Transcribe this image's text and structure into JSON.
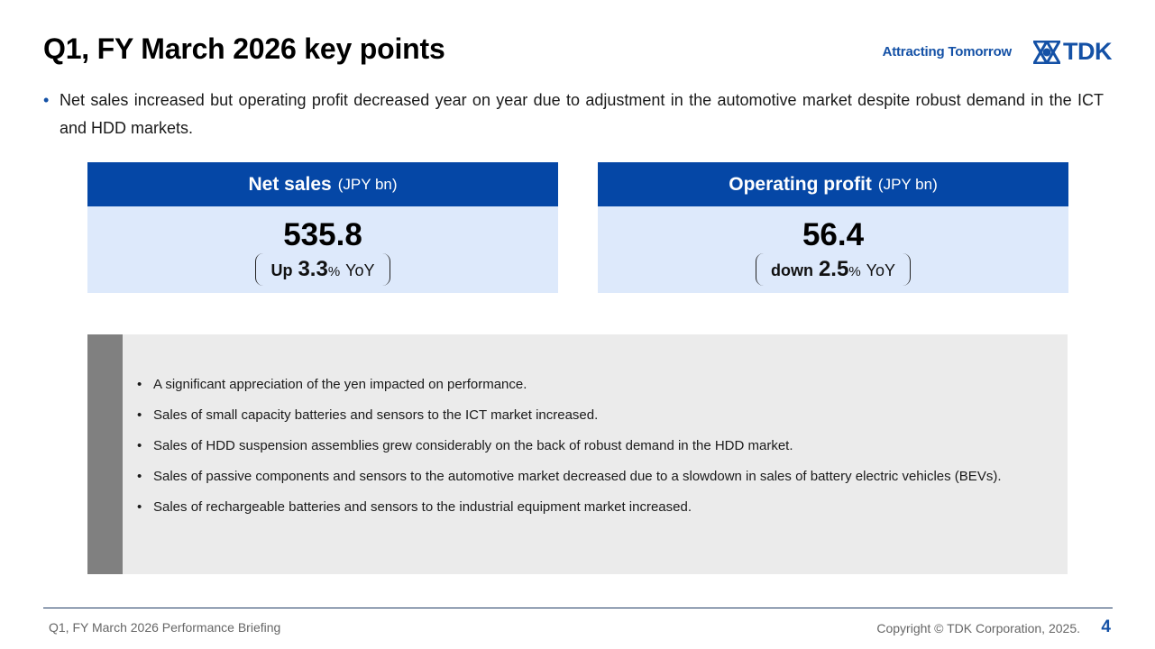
{
  "header": {
    "title": "Q1, FY March 2026 key points",
    "tagline": "Attracting Tomorrow",
    "logo_text": "TDK",
    "brand_color": "#1451a6"
  },
  "lead": {
    "bullet": "•",
    "text": "Net sales increased but operating profit decreased year on year due to adjustment in the automotive market despite robust demand in the ICT and HDD markets."
  },
  "kpis": [
    {
      "label": "Net sales",
      "unit": "(JPY bn)",
      "value": "535.8",
      "direction": "Up",
      "change": "3.3",
      "pct": "%",
      "suffix": "YoY"
    },
    {
      "label": "Operating profit",
      "unit": "(JPY bn)",
      "value": "56.4",
      "direction": "down",
      "change": "2.5",
      "pct": "%",
      "suffix": "YoY"
    }
  ],
  "notes": [
    "A significant appreciation of the yen impacted on performance.",
    "Sales of small capacity batteries and sensors to the ICT market increased.",
    "Sales of HDD suspension assemblies grew considerably on the back of robust demand in the HDD market.",
    "Sales of passive components and sensors to the automotive market decreased due to a slowdown in sales of battery electric vehicles (BEVs).",
    "Sales of rechargeable batteries and sensors to the industrial equipment market increased."
  ],
  "footer": {
    "left": "Q1, FY March 2026 Performance Briefing",
    "copyright": "Copyright © TDK Corporation, 2025.",
    "page": "4"
  }
}
